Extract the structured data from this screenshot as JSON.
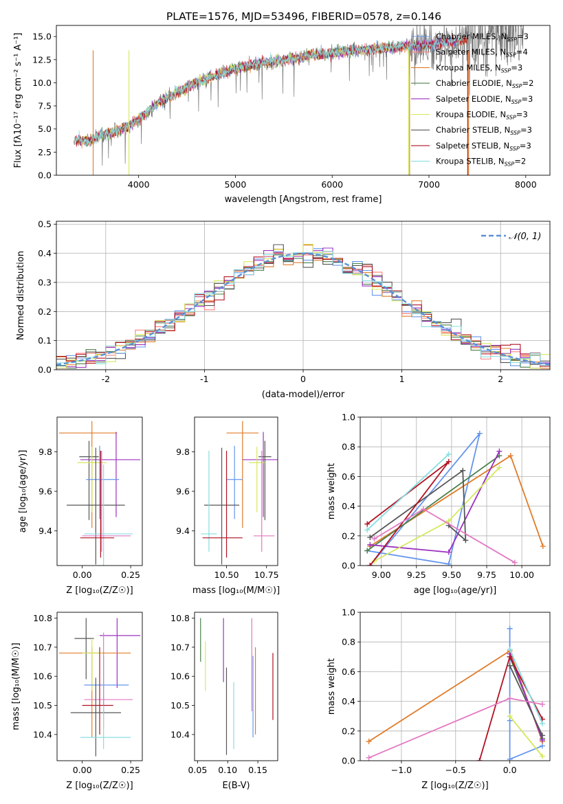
{
  "figure_title": "PLATE=1576, MJD=53496, FIBERID=0578, z=0.146",
  "colors": {
    "Chabrier MILES": "#6495ed",
    "Salpeter MILES": "#ff7f7f",
    "Kroupa MILES": "#e07b28",
    "Chabrier ELODIE": "#4a7f4a",
    "Salpeter ELODIE": "#9b30c0",
    "Kroupa ELODIE": "#d4e85a",
    "Chabrier STELIB": "#555555",
    "Salpeter STELIB": "#b01020",
    "Kroupa STELIB": "#88dde0",
    "Pink": "#e377c2",
    "Gaussian": "#5b8fd6"
  },
  "chart_data": [
    {
      "id": "spectrum",
      "type": "line",
      "title": "PLATE=1576, MJD=53496, FIBERID=0578, z=0.146",
      "xlabel": "wavelength [Angstrom, rest frame]",
      "ylabel": "Flux [fλ10⁻¹⁷ erg cm⁻² s⁻¹ A⁻¹]",
      "xlim": [
        3150,
        8250
      ],
      "ylim": [
        0,
        16.2
      ],
      "xticks": [
        4000,
        5000,
        6000,
        7000,
        8000
      ],
      "yticks": [
        0.0,
        2.5,
        5.0,
        7.5,
        10.0,
        12.5,
        15.0
      ],
      "legend": "top-right",
      "data_envelope": {
        "x": [
          3350,
          3500,
          3600,
          3700,
          3800,
          3900,
          4000,
          4200,
          4400,
          4600,
          4800,
          5000,
          5200,
          5400,
          5600,
          5800,
          6000,
          6200,
          6400,
          6600,
          6800,
          7000,
          7200,
          7400,
          7600,
          7800
        ],
        "y": [
          3.8,
          3.7,
          4.3,
          4.5,
          4.9,
          5.3,
          6.0,
          7.8,
          9.0,
          10.0,
          10.8,
          11.5,
          12.0,
          12.3,
          12.6,
          13.0,
          13.2,
          13.5,
          13.6,
          13.8,
          14.0,
          14.2,
          14.4,
          14.6,
          14.9,
          15.2
        ]
      },
      "series": [
        {
          "name": "Chabrier MILES",
          "nssp": "3"
        },
        {
          "name": "Salpeter MILES",
          "nssp": "4"
        },
        {
          "name": "Kroupa MILES",
          "nssp": "3"
        },
        {
          "name": "Chabrier ELODIE",
          "nssp": "2"
        },
        {
          "name": "Salpeter ELODIE",
          "nssp": "3"
        },
        {
          "name": "Kroupa ELODIE",
          "nssp": "3"
        },
        {
          "name": "Chabrier STELIB",
          "nssp": "3"
        },
        {
          "name": "Salpeter STELIB",
          "nssp": "3"
        },
        {
          "name": "Kroupa STELIB",
          "nssp": "2"
        }
      ]
    },
    {
      "id": "residuals",
      "type": "line",
      "xlabel": "(data-model)/error",
      "ylabel": "Normed distribution",
      "xlim": [
        -2.5,
        2.5
      ],
      "ylim": [
        0,
        0.51
      ],
      "xticks": [
        -2,
        -1,
        0,
        1,
        2
      ],
      "yticks": [
        0.0,
        0.1,
        0.2,
        0.3,
        0.4,
        0.5
      ],
      "grid": true,
      "legend": "top-right",
      "gaussian_label": "𝒩(0, 1)",
      "bin_width": 0.1
    },
    {
      "id": "age_vs_Z",
      "type": "scatter",
      "xlabel": "Z [log₁₀(Z/Z☉)]",
      "ylabel": "age  [log₁₀(age/yr)]",
      "xlim": [
        -0.13,
        0.31
      ],
      "ylim": [
        9.225,
        9.975
      ],
      "xticks": [
        0.0,
        0.25
      ],
      "xtick_labels": [
        "0.00",
        "0.25"
      ],
      "yticks": [
        9.4,
        9.6,
        9.8
      ],
      "points": [
        {
          "c": "Kroupa MILES",
          "x": 0.05,
          "xerr": [
            0.17,
            0.13
          ],
          "y": 9.895,
          "yerr": [
            0.48,
            0.06
          ]
        },
        {
          "c": "Salpeter ELODIE",
          "x": 0.175,
          "xerr": [
            0.185,
            0.125
          ],
          "y": 9.76,
          "yerr": [
            0.29,
            0.14
          ]
        },
        {
          "c": "Chabrier STELIB",
          "x": 0.035,
          "xerr": [
            0.05,
            0.05
          ],
          "y": 9.775,
          "yerr": [
            0.32,
            0.08
          ]
        },
        {
          "c": "Kroupa ELODIE",
          "x": 0.05,
          "xerr": [
            0.075,
            0.075
          ],
          "y": 9.745,
          "yerr": [
            0.25,
            0.08
          ]
        },
        {
          "c": "Chabrier MILES",
          "x": 0.09,
          "xerr": [
            0.07,
            0.1
          ],
          "y": 9.66,
          "yerr": [
            0.2,
            0.17
          ]
        },
        {
          "c": "Chabrier STELIB",
          "x": 0.07,
          "xerr": [
            0.15,
            0.15
          ],
          "y": 9.53,
          "yerr": [
            0.3,
            0.29
          ]
        },
        {
          "c": "Kroupa STELIB",
          "x": 0.11,
          "xerr": [
            0.1,
            0.15
          ],
          "y": 9.385,
          "yerr": [
            0.23,
            0.35
          ]
        },
        {
          "c": "Pink",
          "x": 0.1,
          "xerr": [
            0.1,
            0.15
          ],
          "y": 9.375,
          "yerr": [
            0.08,
            0.43
          ]
        },
        {
          "c": "Salpeter STELIB",
          "x": 0.095,
          "xerr": [
            0.105,
            0.07
          ],
          "y": 9.365,
          "yerr": [
            0.1,
            0.44
          ]
        }
      ]
    },
    {
      "id": "age_vs_mass",
      "type": "scatter",
      "xlabel": "mass [log₁₀(M/M☉)]",
      "ylabel": "",
      "xlim": [
        10.3,
        10.82
      ],
      "ylim": [
        9.225,
        9.975
      ],
      "xticks": [
        10.5,
        10.75
      ],
      "xtick_labels": [
        "10.50",
        "10.75"
      ],
      "yticks": [
        9.4,
        9.6,
        9.8
      ],
      "points": [
        {
          "c": "Kroupa MILES",
          "x": 10.6,
          "xerr": [
            0.1,
            0.1
          ],
          "y": 9.895,
          "yerr": [
            0.48,
            0.06
          ]
        },
        {
          "c": "Salpeter ELODIE",
          "x": 10.73,
          "xerr": [
            0.13,
            0.09
          ],
          "y": 9.76,
          "yerr": [
            0.29,
            0.14
          ]
        },
        {
          "c": "Chabrier STELIB",
          "x": 10.74,
          "xerr": [
            0.04,
            0.04
          ],
          "y": 9.775,
          "yerr": [
            0.32,
            0.08
          ]
        },
        {
          "c": "Kroupa ELODIE",
          "x": 10.69,
          "xerr": [
            0.05,
            0.05
          ],
          "y": 9.745,
          "yerr": [
            0.25,
            0.08
          ]
        },
        {
          "c": "Chabrier MILES",
          "x": 10.55,
          "xerr": [
            0.05,
            0.05
          ],
          "y": 9.66,
          "yerr": [
            0.2,
            0.17
          ]
        },
        {
          "c": "Chabrier STELIB",
          "x": 10.47,
          "xerr": [
            0.11,
            0.11
          ],
          "y": 9.53,
          "yerr": [
            0.3,
            0.29
          ]
        },
        {
          "c": "Kroupa STELIB",
          "x": 10.39,
          "xerr": [
            0.05,
            0.05
          ],
          "y": 9.385,
          "yerr": [
            0.09,
            0.42
          ]
        },
        {
          "c": "Pink",
          "x": 10.72,
          "xerr": [
            0.05,
            0.08
          ],
          "y": 9.375,
          "yerr": [
            0.08,
            0.43
          ]
        },
        {
          "c": "Salpeter STELIB",
          "x": 10.5,
          "xerr": [
            0.15,
            0.1
          ],
          "y": 9.365,
          "yerr": [
            0.1,
            0.44
          ]
        }
      ]
    },
    {
      "id": "weight_vs_age",
      "type": "line",
      "xlabel": "age  [log₁₀(age/yr)]",
      "ylabel": "mass weight",
      "xlim": [
        8.85,
        10.2
      ],
      "ylim": [
        0,
        1
      ],
      "xticks": [
        9.0,
        9.25,
        9.5,
        9.75,
        10.0
      ],
      "xtick_labels": [
        "9.00",
        "9.25",
        "9.50",
        "9.75",
        "10.00"
      ],
      "yticks": [
        0.0,
        0.2,
        0.4,
        0.6,
        0.8,
        1.0
      ],
      "grid": true,
      "series": [
        {
          "c": "Chabrier MILES",
          "x": [
            8.9,
            9.48,
            9.7,
            8.92
          ],
          "y": [
            0.1,
            0.01,
            0.89,
            0.0
          ]
        },
        {
          "c": "Kroupa MILES",
          "x": [
            8.92,
            9.92,
            10.15
          ],
          "y": [
            0.13,
            0.74,
            0.13
          ]
        },
        {
          "c": "Chabrier ELODIE",
          "x": [
            8.9,
            9.84
          ],
          "y": [
            0.1,
            0.74
          ]
        },
        {
          "c": "Salpeter ELODIE",
          "x": [
            8.92,
            9.48,
            9.84
          ],
          "y": [
            0.14,
            0.09,
            0.77
          ]
        },
        {
          "c": "Kroupa ELODIE",
          "x": [
            8.95,
            9.48,
            9.84
          ],
          "y": [
            0.03,
            0.3,
            0.66
          ]
        },
        {
          "c": "Chabrier STELIB",
          "x": [
            8.92,
            9.58,
            9.6,
            9.48
          ],
          "y": [
            0.19,
            0.64,
            0.17,
            0.27
          ]
        },
        {
          "c": "Salpeter STELIB",
          "x": [
            8.9,
            9.48,
            8.92
          ],
          "y": [
            0.28,
            0.7,
            0.0
          ]
        },
        {
          "c": "Kroupa STELIB",
          "x": [
            8.9,
            9.48
          ],
          "y": [
            0.24,
            0.75
          ]
        },
        {
          "c": "Pink",
          "x": [
            8.95,
            9.3,
            9.95
          ],
          "y": [
            0.18,
            0.38,
            0.02
          ]
        }
      ]
    },
    {
      "id": "mass_vs_Z",
      "type": "scatter",
      "xlabel": "Z [log₁₀(Z/Z☉)]",
      "ylabel": "mass [log₁₀(M/M☉)]",
      "xlim": [
        -0.13,
        0.31
      ],
      "ylim": [
        10.31,
        10.82
      ],
      "xticks": [
        0.0,
        0.25
      ],
      "xtick_labels": [
        "0.00",
        "0.25"
      ],
      "yticks": [
        10.4,
        10.5,
        10.6,
        10.7,
        10.8
      ],
      "points": [
        {
          "c": "Salpeter ELODIE",
          "x": 0.18,
          "xerr": [
            0.09,
            0.12
          ],
          "y": 10.74,
          "yerr": [
            0.18,
            0.06
          ]
        },
        {
          "c": "Chabrier STELIB",
          "x": 0.02,
          "xerr": [
            0.06,
            0.04
          ],
          "y": 10.73,
          "yerr": [
            0.14,
            0.07
          ]
        },
        {
          "c": "Kroupa MILES",
          "x": 0.05,
          "xerr": [
            0.17,
            0.2
          ],
          "y": 10.68,
          "yerr": [
            0.29,
            0.02
          ]
        },
        {
          "c": "Kroupa ELODIE",
          "x": 0.05,
          "xerr": [
            0.05,
            0.05
          ],
          "y": 10.68,
          "yerr": [
            0.13,
            0.05
          ]
        },
        {
          "c": "Chabrier MILES",
          "x": 0.11,
          "xerr": [
            0.1,
            0.13
          ],
          "y": 10.57,
          "yerr": [
            0.1,
            0.1
          ]
        },
        {
          "c": "Pink",
          "x": 0.11,
          "xerr": [
            0.1,
            0.15
          ],
          "y": 10.52,
          "yerr": [
            0.1,
            0.23
          ]
        },
        {
          "c": "Salpeter STELIB",
          "x": 0.09,
          "xerr": [
            0.09,
            0.07
          ],
          "y": 10.5,
          "yerr": [
            0.1,
            0.2
          ]
        },
        {
          "c": "Chabrier STELIB",
          "x": 0.07,
          "xerr": [
            0.13,
            0.13
          ],
          "y": 10.475,
          "yerr": [
            0.15,
            0.12
          ]
        },
        {
          "c": "Kroupa STELIB",
          "x": 0.11,
          "xerr": [
            0.12,
            0.14
          ],
          "y": 10.39,
          "yerr": [
            0.04,
            0.11
          ]
        }
      ]
    },
    {
      "id": "mass_vs_EBV",
      "type": "scatter",
      "xlabel": "E(B-V)",
      "ylabel": "",
      "xlim": [
        0.045,
        0.183
      ],
      "ylim": [
        10.31,
        10.82
      ],
      "xticks": [
        0.05,
        0.1,
        0.15
      ],
      "xtick_labels": [
        "0.05",
        "0.10",
        "0.15"
      ],
      "yticks": [
        10.4,
        10.5,
        10.6,
        10.7,
        10.8
      ],
      "segments": [
        {
          "c": "Chabrier ELODIE",
          "x": 0.055,
          "y": [
            10.65,
            10.8
          ]
        },
        {
          "c": "Kroupa ELODIE",
          "x": 0.063,
          "y": [
            10.55,
            10.72
          ]
        },
        {
          "c": "Salpeter ELODIE",
          "x": 0.093,
          "y": [
            10.58,
            10.8
          ]
        },
        {
          "c": "Chabrier STELIB",
          "x": 0.098,
          "y": [
            10.33,
            10.63
          ]
        },
        {
          "c": "Kroupa STELIB",
          "x": 0.11,
          "y": [
            10.35,
            10.58
          ]
        },
        {
          "c": "Pink",
          "x": 0.14,
          "y": [
            10.48,
            10.8
          ]
        },
        {
          "c": "Chabrier MILES",
          "x": 0.142,
          "y": [
            10.39,
            10.67
          ]
        },
        {
          "c": "Kroupa MILES",
          "x": 0.146,
          "y": [
            10.4,
            10.7
          ]
        },
        {
          "c": "Salpeter STELIB",
          "x": 0.175,
          "y": [
            10.45,
            10.68
          ]
        }
      ]
    },
    {
      "id": "weight_vs_Z",
      "type": "line",
      "xlabel": "Z [log₁₀(Z/Z☉)]",
      "ylabel": "mass weight",
      "xlim": [
        -1.38,
        0.37
      ],
      "ylim": [
        0,
        1
      ],
      "xticks": [
        -1.0,
        -0.5,
        0.0
      ],
      "xtick_labels": [
        "−1.0",
        "−0.5",
        "0.0"
      ],
      "yticks": [
        0.0,
        0.2,
        0.4,
        0.6,
        0.8,
        1.0
      ],
      "grid": true,
      "series": [
        {
          "c": "Chabrier MILES",
          "x": [
            0.3,
            0.0,
            0.0,
            0.0
          ],
          "y": [
            0.1,
            0.01,
            0.89,
            0.27
          ]
        },
        {
          "c": "Kroupa MILES",
          "x": [
            -1.3,
            0.0,
            0.3
          ],
          "y": [
            0.13,
            0.74,
            0.13
          ]
        },
        {
          "c": "Chabrier ELODIE",
          "x": [
            0.0,
            0.3
          ],
          "y": [
            0.7,
            0.15
          ]
        },
        {
          "c": "Salpeter ELODIE",
          "x": [
            0.0,
            0.3
          ],
          "y": [
            0.72,
            0.14
          ]
        },
        {
          "c": "Kroupa ELODIE",
          "x": [
            0.0,
            0.3
          ],
          "y": [
            0.3,
            0.03
          ]
        },
        {
          "c": "Chabrier STELIB",
          "x": [
            0.0,
            0.3
          ],
          "y": [
            0.64,
            0.17
          ]
        },
        {
          "c": "Salpeter STELIB",
          "x": [
            -0.28,
            0.0,
            0.3
          ],
          "y": [
            0.0,
            0.7,
            0.28
          ]
        },
        {
          "c": "Kroupa STELIB",
          "x": [
            0.0,
            0.3
          ],
          "y": [
            0.75,
            0.25
          ]
        },
        {
          "c": "Pink",
          "x": [
            -1.3,
            0.0,
            0.3
          ],
          "y": [
            0.02,
            0.42,
            0.38
          ]
        }
      ]
    }
  ]
}
